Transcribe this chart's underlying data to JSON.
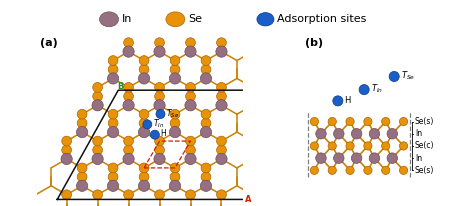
{
  "bg_color": "#ffffff",
  "in_color": "#967080",
  "se_color": "#e8920a",
  "blue_color": "#1a5fc8",
  "bond_color": "#cc8000",
  "panel_a_label": "(a)",
  "panel_b_label": "(b)",
  "legend_labels": [
    "In",
    "Se",
    "Adsorption sites"
  ],
  "side_labels": [
    "Se(s)",
    "In",
    "Se(c)",
    "In",
    "Se(s)"
  ],
  "unit_cell_color_red": "#cc2200",
  "unit_cell_color_black": "#111111",
  "b_label_color": "#228B22",
  "a_label_color": "#cc2200",
  "in_edge": "#6b5060",
  "se_edge": "#aa6600",
  "blue_edge": "#0a3a8a"
}
